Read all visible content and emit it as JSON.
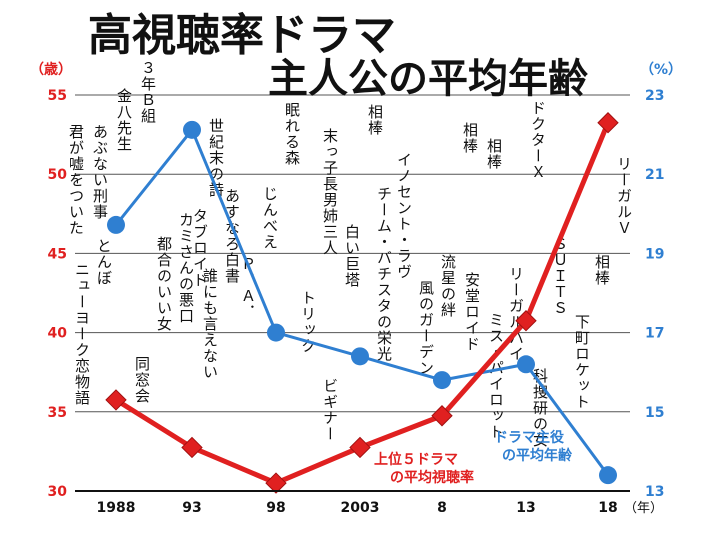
{
  "title_line1": "高視聴率ドラマ",
  "title_line2": "主人公の平均年齢",
  "left_unit": "（歳）",
  "right_unit": "（%）",
  "x_unit": "（年）",
  "colors": {
    "age": "#2f7fd1",
    "rating": "#e02020",
    "left_axis": "#e02020",
    "right_axis": "#2f7fd1"
  },
  "chart_data": {
    "type": "line",
    "x_ticks": [
      "1988",
      "93",
      "98",
      "2003",
      "8",
      "13",
      "18"
    ],
    "left_axis": {
      "label": "（歳）",
      "ylim": [
        30,
        55
      ],
      "ticks": [
        30,
        35,
        40,
        45,
        50,
        55
      ]
    },
    "right_axis": {
      "label": "（%）",
      "ylim": [
        13,
        23
      ],
      "ticks": [
        13,
        15,
        17,
        19,
        21,
        23
      ]
    },
    "series": [
      {
        "name": "ドラマ主役の平均年齢",
        "axis": "left",
        "color": "#2f7fd1",
        "marker": "circle",
        "x": [
          1988,
          1993,
          1998,
          2003,
          2008,
          2013,
          2018
        ],
        "values": [
          46.8,
          52.8,
          40.0,
          38.5,
          37.0,
          38.0,
          31.0
        ]
      },
      {
        "name": "上位５ドラマの平均視聴率",
        "axis": "right",
        "color": "#e02020",
        "marker": "diamond",
        "x": [
          1988,
          1993,
          1998,
          2003,
          2008,
          2013,
          2018
        ],
        "values": [
          15.3,
          14.1,
          13.2,
          14.1,
          14.9,
          17.3,
          22.3
        ]
      }
    ],
    "series_labels": {
      "age": [
        "ドラマ主役",
        "の平均年齢"
      ],
      "rating": [
        "上位５ドラマ",
        "の平均視聴率"
      ]
    },
    "drama_columns": [
      {
        "year": "1988",
        "text": "３年Ｂ組"
      },
      {
        "year": "1988",
        "text": "金八先生"
      },
      {
        "year": "1988",
        "text": "あぶない刑事"
      },
      {
        "year": "1988",
        "text": "君が嘘をついた"
      },
      {
        "year": "1988",
        "text": "とんぼ"
      },
      {
        "year": "1988",
        "text": "ニューヨーク恋物語"
      },
      {
        "year": "93",
        "text": "あすなろ白書"
      },
      {
        "year": "93",
        "text": "誰にも言えない"
      },
      {
        "year": "93",
        "text": "カミさんの悪口"
      },
      {
        "year": "93",
        "text": "都合のいい女"
      },
      {
        "year": "93",
        "text": "同窓会"
      },
      {
        "year": "98",
        "text": "眠れる森"
      },
      {
        "year": "98",
        "text": "じんべえ"
      },
      {
        "year": "98",
        "text": "Ｐ．Ａ．"
      },
      {
        "year": "98",
        "text": "世紀末の詩"
      },
      {
        "year": "98",
        "text": "タブロイド"
      },
      {
        "year": "2003",
        "text": "相棒"
      },
      {
        "year": "2003",
        "text": "白い巨塔"
      },
      {
        "year": "2003",
        "text": "末っ子長男姉三人"
      },
      {
        "year": "2003",
        "text": "トリック"
      },
      {
        "year": "2003",
        "text": "ビギナー"
      },
      {
        "year": "8",
        "text": "相棒"
      },
      {
        "year": "8",
        "text": "流星の絆"
      },
      {
        "year": "8",
        "text": "風のガーデン"
      },
      {
        "year": "8",
        "text": "イノセント・ラヴ"
      },
      {
        "year": "8",
        "text": "チーム・バチスタの栄光"
      },
      {
        "year": "13",
        "text": "ドクターＸ"
      },
      {
        "year": "13",
        "text": "リーガルハイ"
      },
      {
        "year": "13",
        "text": "相棒"
      },
      {
        "year": "13",
        "text": "安堂ロイド"
      },
      {
        "year": "13",
        "text": "ミス・パイロット"
      },
      {
        "year": "18",
        "text": "リーガルＶ"
      },
      {
        "year": "18",
        "text": "相棒"
      },
      {
        "year": "18",
        "text": "下町ロケット"
      },
      {
        "year": "18",
        "text": "ＳＵＩＴＳ"
      },
      {
        "year": "18",
        "text": "科捜研の女"
      }
    ]
  }
}
